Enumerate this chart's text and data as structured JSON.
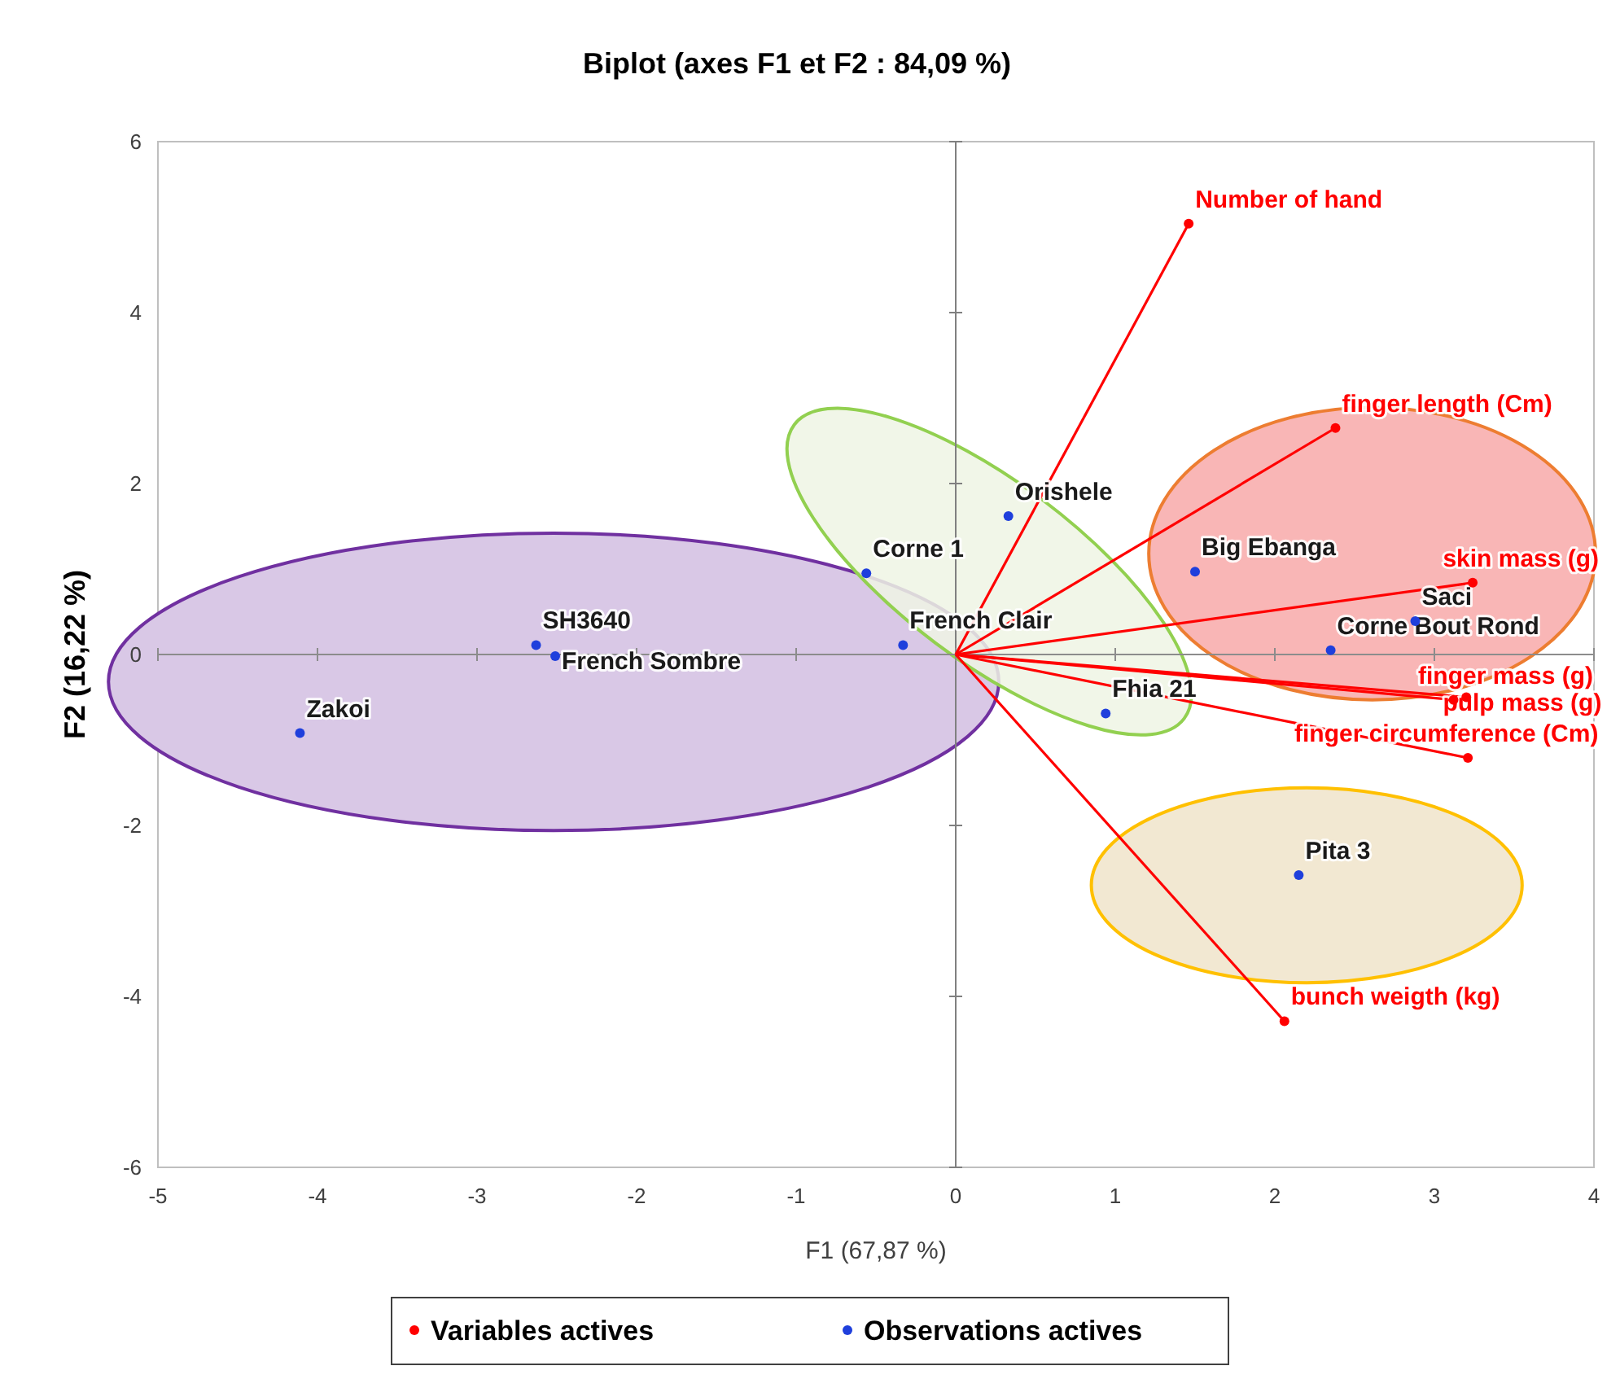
{
  "chart_data": {
    "type": "scatter",
    "title": "Biplot (axes F1 et F2 : 84,09 %)",
    "xlabel": "F1 (67,87 %)",
    "ylabel": "F2 (16,22 %)",
    "xlim": [
      -5,
      4
    ],
    "xticks": [
      -5,
      -4,
      -3,
      -2,
      -1,
      0,
      1,
      2,
      3,
      4
    ],
    "ylim": [
      -6,
      6
    ],
    "yticks": [
      -6,
      -4,
      -2,
      0,
      2,
      4,
      6
    ],
    "grid": false,
    "legend": "bottom",
    "marker": "circle",
    "ref_lines": [
      {
        "axis": "x",
        "value": 0,
        "color": "#808080"
      },
      {
        "axis": "y",
        "value": 0,
        "color": "#8c8c8c"
      }
    ],
    "series": [
      {
        "type": "line",
        "marker": "none",
        "color": "#ff0000",
        "x": [
          0,
          1.46
        ],
        "values": [
          0,
          5.04
        ]
      },
      {
        "type": "line",
        "marker": "none",
        "color": "#ff0000",
        "x": [
          0,
          2.38
        ],
        "values": [
          0,
          2.65
        ]
      },
      {
        "type": "line",
        "marker": "none",
        "color": "#ff0000",
        "x": [
          0,
          3.24
        ],
        "values": [
          0,
          0.84
        ]
      },
      {
        "type": "line",
        "marker": "none",
        "color": "#ff0000",
        "x": [
          0,
          3.12
        ],
        "values": [
          0,
          -0.53
        ]
      },
      {
        "type": "line",
        "marker": "none",
        "color": "#ff0000",
        "x": [
          0,
          3.21
        ],
        "values": [
          0,
          -1.21
        ]
      },
      {
        "type": "line",
        "marker": "none",
        "color": "#ff0000",
        "x": [
          0,
          3.2
        ],
        "values": [
          0,
          -0.5
        ]
      },
      {
        "type": "line",
        "marker": "none",
        "color": "#ff0000",
        "x": [
          0,
          2.06
        ],
        "values": [
          0,
          -4.29
        ]
      },
      {
        "name": "Variables actives",
        "color": "#ff0000",
        "x": [
          1.46,
          2.38,
          3.24,
          3.12,
          3.21,
          3.2,
          2.06
        ],
        "values": [
          5.04,
          2.65,
          0.84,
          -0.53,
          -1.21,
          -0.5,
          -4.29
        ]
      },
      {
        "name": "Observations actives",
        "color": "#1f3fdc",
        "x": [
          0.33,
          1.5,
          2.88,
          2.35,
          0.94,
          2.15,
          -0.56,
          -0.33,
          -2.63,
          -2.51,
          -4.11
        ],
        "values": [
          1.62,
          0.97,
          0.39,
          0.05,
          -0.69,
          -2.58,
          0.95,
          0.11,
          0.11,
          -0.02,
          -0.92
        ]
      }
    ],
    "annotations": [
      {
        "text": "Number of hand",
        "x": 1.46,
        "y": 5.04
      },
      {
        "text": "finger length (Cm)",
        "x": 2.38,
        "y": 2.65
      },
      {
        "text": "skin mass (g)",
        "x": 3.24,
        "y": 0.84
      },
      {
        "text": "finger mass (g)",
        "x": 3.12,
        "y": -0.53
      },
      {
        "text": "finger circumference (Cm)",
        "x": 3.21,
        "y": -1.21
      },
      {
        "text": "pulp mass (g)",
        "x": 3.2,
        "y": -0.5
      },
      {
        "text": "bunch weigth (kg)",
        "x": 2.06,
        "y": -4.29
      },
      {
        "text": "Orishele",
        "x": 0.33,
        "y": 1.62
      },
      {
        "text": "Big Ebanga",
        "x": 1.5,
        "y": 0.97
      },
      {
        "text": "Saci",
        "x": 2.88,
        "y": 0.39
      },
      {
        "text": "Corne Bout Rond",
        "x": 2.35,
        "y": 0.05
      },
      {
        "text": "Fhia 21",
        "x": 0.94,
        "y": -0.69
      },
      {
        "text": "Pita 3",
        "x": 2.15,
        "y": -2.58
      },
      {
        "text": "Corne 1",
        "x": -0.56,
        "y": 0.95
      },
      {
        "text": "French Clair",
        "x": -0.33,
        "y": 0.11
      },
      {
        "text": "SH3640",
        "x": -2.63,
        "y": 0.11
      },
      {
        "text": "French Sombre",
        "x": -2.51,
        "y": -0.02
      },
      {
        "text": "Zakoi",
        "x": -4.11,
        "y": -0.92
      }
    ]
  }
}
